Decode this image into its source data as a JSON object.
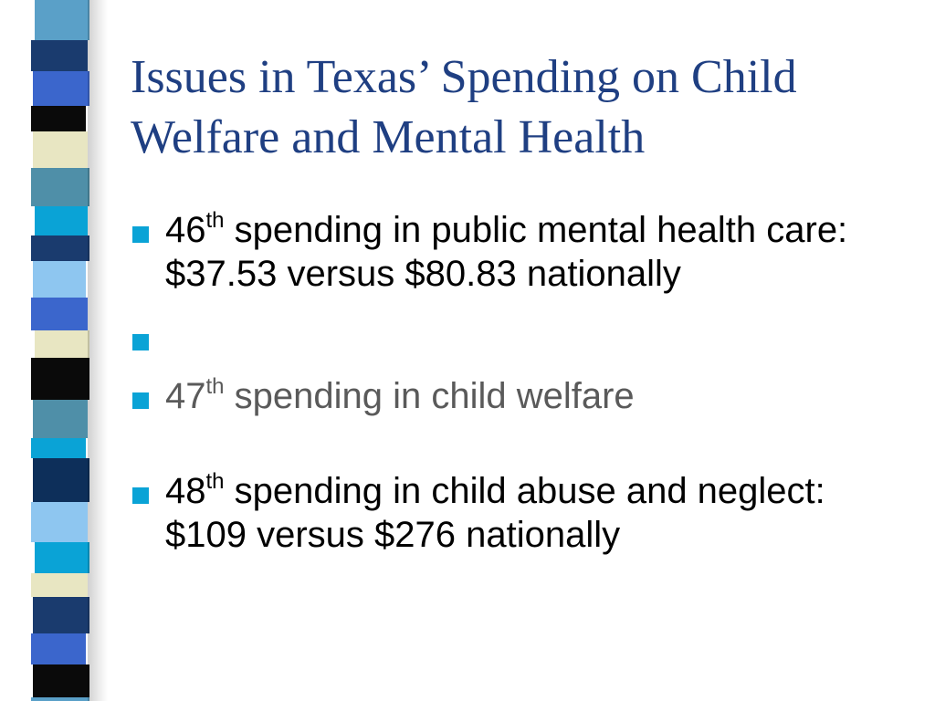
{
  "slide": {
    "title": "Issues in Texas’ Spending on Child Welfare and Mental Health",
    "bullets": [
      {
        "rank": "46",
        "suffix": "th",
        "text": " spending in public mental health care: $37.53 versus $80.83 nationally"
      },
      {
        "rank": "",
        "suffix": "",
        "text": ""
      },
      {
        "rank": "47",
        "suffix": "th",
        "text": " spending in child welfare"
      },
      {
        "rank": "48",
        "suffix": "th",
        "text": " spending in child abuse and neglect: $109 versus $276 nationally"
      }
    ]
  },
  "colors": {
    "title": "#1f3f82",
    "bullet": "#0aa3d6",
    "stripe_palette": [
      "#5aa0c8",
      "#1a3b6e",
      "#3b66cc",
      "#0a0a0a",
      "#e8e6c2",
      "#4f8fa8",
      "#0aa3d6",
      "#8ec6f0",
      "#0d2f5a"
    ]
  }
}
